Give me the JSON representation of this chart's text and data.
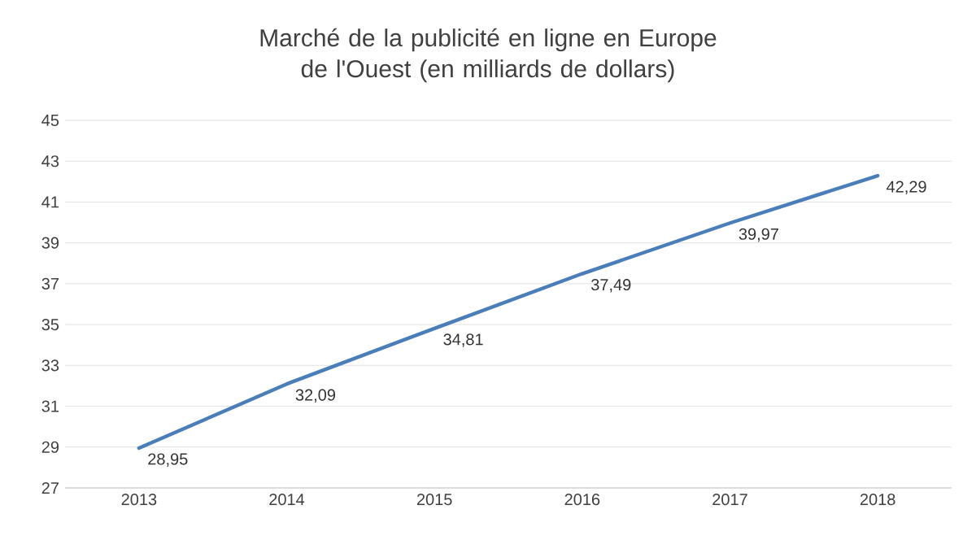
{
  "chart_data": {
    "type": "line",
    "title": "Marché de la publicité en ligne en Europe de l'Ouest (en milliards de dollars)",
    "categories": [
      "2013",
      "2014",
      "2015",
      "2016",
      "2017",
      "2018"
    ],
    "series": [
      {
        "color": "#4a7ebb",
        "values": [
          28.95,
          32.09,
          34.81,
          37.49,
          39.97,
          42.29
        ]
      }
    ],
    "value_labels": [
      "28,95",
      "32,09",
      "34,81",
      "37,49",
      "39,97",
      "42,29"
    ],
    "ylim": [
      27,
      45
    ],
    "yticks": [
      27,
      29,
      31,
      33,
      35,
      37,
      39,
      41,
      43,
      45
    ],
    "grid": "y",
    "marker": "none",
    "line_style": "solid"
  }
}
